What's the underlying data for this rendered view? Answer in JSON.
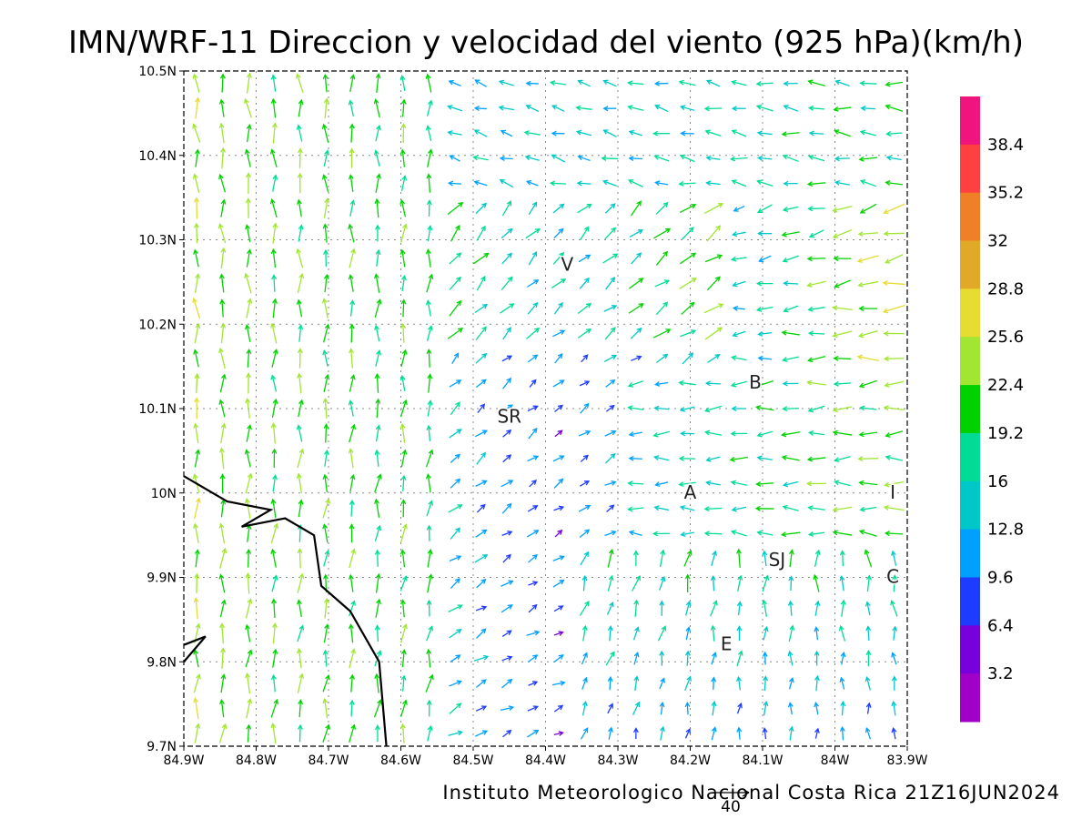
{
  "title": "IMN/WRF-11 Direccion y velocidad del viento (925 hPa)(km/h)",
  "credit": "Instituto Meteorologico Nacional Costa Rica 21Z16JUN2024",
  "reference_vector_label": "40",
  "axes": {
    "lon_min": -84.9,
    "lon_max": -83.9,
    "lat_min": 9.7,
    "lat_max": 10.5,
    "x_ticks": [
      "84.9W",
      "84.8W",
      "84.7W",
      "84.6W",
      "84.5W",
      "84.4W",
      "84.3W",
      "84.2W",
      "84.1W",
      "84W",
      "83.9W"
    ],
    "y_ticks": [
      "10.5N",
      "10.4N",
      "10.3N",
      "10.2N",
      "10.1N",
      "10N",
      "9.9N",
      "9.8N",
      "9.7N"
    ]
  },
  "colorbar": {
    "labels": [
      "38.4",
      "35.2",
      "32",
      "28.8",
      "25.6",
      "22.4",
      "19.2",
      "16",
      "12.8",
      "9.6",
      "6.4",
      "3.2"
    ],
    "colors": [
      "#f0147f",
      "#ff4040",
      "#f08028",
      "#e0aa28",
      "#e6dc32",
      "#a0e632",
      "#00d200",
      "#00dc96",
      "#00c8c8",
      "#00a0ff",
      "#1e3cff",
      "#7800dc",
      "#a000c8"
    ]
  },
  "places": [
    {
      "label": "V",
      "lon": -84.37,
      "lat": 10.27
    },
    {
      "label": "SR",
      "lon": -84.45,
      "lat": 10.09
    },
    {
      "label": "B",
      "lon": -84.11,
      "lat": 10.13
    },
    {
      "label": "A",
      "lon": -84.2,
      "lat": 10.0
    },
    {
      "label": "I",
      "lon": -83.92,
      "lat": 10.0
    },
    {
      "label": "SJ",
      "lon": -84.08,
      "lat": 9.92
    },
    {
      "label": "C",
      "lon": -83.92,
      "lat": 9.9
    },
    {
      "label": "E",
      "lon": -84.15,
      "lat": 9.82
    }
  ],
  "coastline": [
    [
      -84.9,
      10.02
    ],
    [
      -84.84,
      9.99
    ],
    [
      -84.78,
      9.98
    ],
    [
      -84.82,
      9.96
    ],
    [
      -84.76,
      9.97
    ],
    [
      -84.72,
      9.95
    ],
    [
      -84.71,
      9.89
    ],
    [
      -84.67,
      9.86
    ],
    [
      -84.63,
      9.8
    ],
    [
      -84.62,
      9.7
    ]
  ],
  "coastline2": [
    [
      -84.9,
      9.82
    ],
    [
      -84.87,
      9.83
    ],
    [
      -84.9,
      9.8
    ]
  ],
  "wind_map": {
    "regions": [
      {
        "name": "west-northward",
        "dir_deg": 95,
        "speed": 22
      },
      {
        "name": "center-northeast",
        "dir_deg": 40,
        "speed": 22
      },
      {
        "name": "north-westward",
        "dir_deg": 165,
        "speed": 16
      },
      {
        "name": "east-westward",
        "dir_deg": 185,
        "speed": 20
      },
      {
        "name": "south-northward",
        "dir_deg": 85,
        "speed": 16
      }
    ]
  }
}
